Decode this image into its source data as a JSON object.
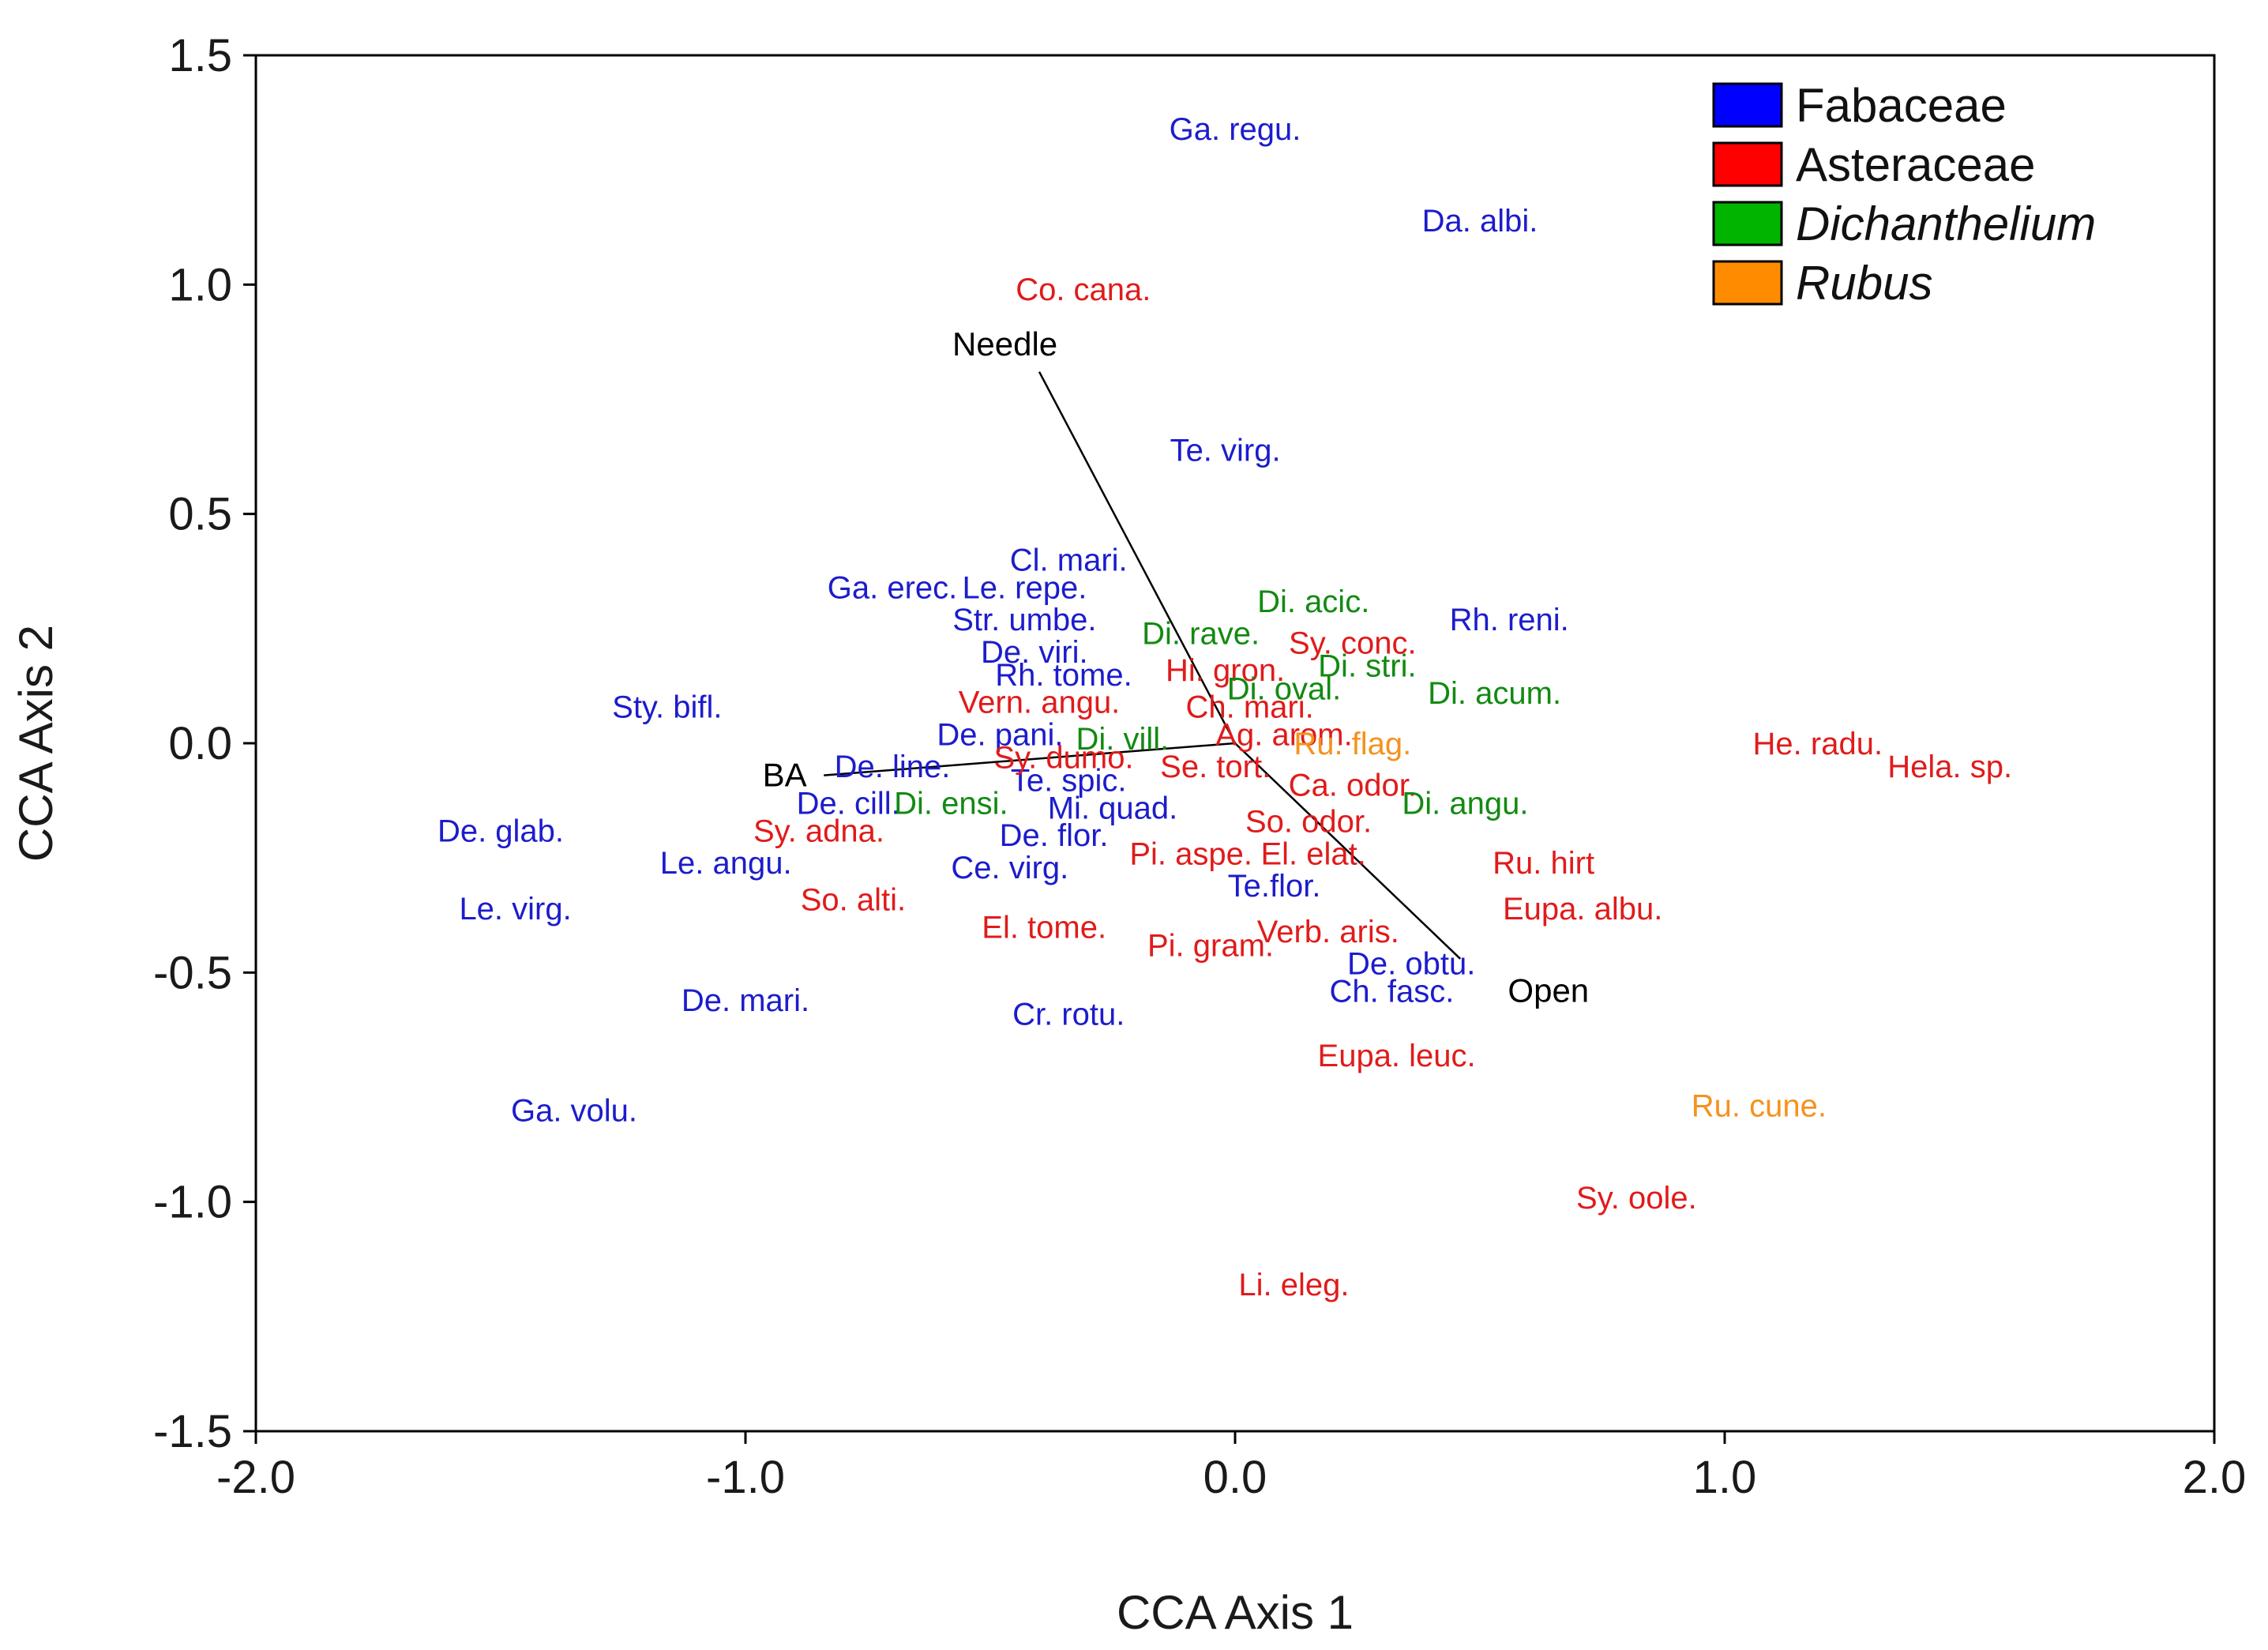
{
  "chart_data": {
    "type": "scatter",
    "title": "",
    "xlabel": "CCA Axis 1",
    "ylabel": "CCA Axis 2",
    "xlim": [
      -2.0,
      2.0
    ],
    "ylim": [
      -1.5,
      1.5
    ],
    "x_ticks": [
      -2.0,
      -1.0,
      0.0,
      1.0,
      2.0
    ],
    "x_tick_labels": [
      "-2.0",
      "-1.0",
      "0.0",
      "1.0",
      "2.0"
    ],
    "y_ticks": [
      -1.5,
      -1.0,
      -0.5,
      0.0,
      0.5,
      1.0,
      1.5
    ],
    "y_tick_labels": [
      "-1.5",
      "-1.0",
      "-0.5",
      "0.0",
      "0.5",
      "1.0",
      "1.5"
    ],
    "grid": false,
    "legend_position": "top-right",
    "colors": {
      "Fabaceae": "#1c1ccc",
      "Asteraceae": "#e01b1b",
      "Dichanthelium": "#128a12",
      "Rubus": "#f5921e",
      "vector": "#000000"
    },
    "legend": [
      {
        "label": "Fabaceae",
        "group": "Fabaceae",
        "swatch": "#0000ff",
        "italic": false
      },
      {
        "label": "Asteraceae",
        "group": "Asteraceae",
        "swatch": "#ff0000",
        "italic": false
      },
      {
        "label": "Dichanthelium",
        "group": "Dichanthelium",
        "swatch": "#00b400",
        "italic": true
      },
      {
        "label": "Rubus",
        "group": "Rubus",
        "swatch": "#ff8c00",
        "italic": true
      }
    ],
    "vectors": [
      {
        "name": "Needle",
        "x": -0.4,
        "y": 0.81,
        "label_x": -0.47,
        "label_y": 0.87
      },
      {
        "name": "BA",
        "x": -0.84,
        "y": -0.07,
        "label_x": -0.92,
        "label_y": -0.07
      },
      {
        "name": "Open",
        "x": 0.46,
        "y": -0.47,
        "label_x": 0.64,
        "label_y": -0.54
      }
    ],
    "points": [
      {
        "label": "Ga. regu.",
        "group": "Fabaceae",
        "x": 0.0,
        "y": 1.34
      },
      {
        "label": "Da. albi.",
        "group": "Fabaceae",
        "x": 0.5,
        "y": 1.14
      },
      {
        "label": "Te. virg.",
        "group": "Fabaceae",
        "x": -0.02,
        "y": 0.64
      },
      {
        "label": "Cl. mari.",
        "group": "Fabaceae",
        "x": -0.34,
        "y": 0.4
      },
      {
        "label": "Ga. erec.",
        "group": "Fabaceae",
        "x": -0.7,
        "y": 0.34
      },
      {
        "label": "Le. repe.",
        "group": "Fabaceae",
        "x": -0.43,
        "y": 0.34
      },
      {
        "label": "Str. umbe.",
        "group": "Fabaceae",
        "x": -0.43,
        "y": 0.27
      },
      {
        "label": "De. viri.",
        "group": "Fabaceae",
        "x": -0.41,
        "y": 0.2
      },
      {
        "label": "Rh. tome.",
        "group": "Fabaceae",
        "x": -0.35,
        "y": 0.15
      },
      {
        "label": "Sty. bifl.",
        "group": "Fabaceae",
        "x": -1.16,
        "y": 0.08
      },
      {
        "label": "De. pani.",
        "group": "Fabaceae",
        "x": -0.48,
        "y": 0.02
      },
      {
        "label": "De. line.",
        "group": "Fabaceae",
        "x": -0.7,
        "y": -0.05
      },
      {
        "label": "De. cill.",
        "group": "Fabaceae",
        "x": -0.79,
        "y": -0.13
      },
      {
        "label": "Te. spic.",
        "group": "Fabaceae",
        "x": -0.34,
        "y": -0.08
      },
      {
        "label": "Mi. quad.",
        "group": "Fabaceae",
        "x": -0.25,
        "y": -0.14
      },
      {
        "label": "De. flor.",
        "group": "Fabaceae",
        "x": -0.37,
        "y": -0.2
      },
      {
        "label": "De. glab.",
        "group": "Fabaceae",
        "x": -1.5,
        "y": -0.19
      },
      {
        "label": "Le. angu.",
        "group": "Fabaceae",
        "x": -1.04,
        "y": -0.26
      },
      {
        "label": "Ce. virg.",
        "group": "Fabaceae",
        "x": -0.46,
        "y": -0.27
      },
      {
        "label": "Le. virg.",
        "group": "Fabaceae",
        "x": -1.47,
        "y": -0.36
      },
      {
        "label": "Te.flor.",
        "group": "Fabaceae",
        "x": 0.08,
        "y": -0.31
      },
      {
        "label": "De. obtu.",
        "group": "Fabaceae",
        "x": 0.36,
        "y": -0.48
      },
      {
        "label": "Ch. fasc.",
        "group": "Fabaceae",
        "x": 0.32,
        "y": -0.54
      },
      {
        "label": "De. mari.",
        "group": "Fabaceae",
        "x": -1.0,
        "y": -0.56
      },
      {
        "label": "Cr. rotu.",
        "group": "Fabaceae",
        "x": -0.34,
        "y": -0.59
      },
      {
        "label": "Ga. volu.",
        "group": "Fabaceae",
        "x": -1.35,
        "y": -0.8
      },
      {
        "label": "Rh. reni.",
        "group": "Fabaceae",
        "x": 0.56,
        "y": 0.27
      },
      {
        "label": "Co. cana.",
        "group": "Asteraceae",
        "x": -0.31,
        "y": 0.99
      },
      {
        "label": "Sy. conc.",
        "group": "Asteraceae",
        "x": 0.24,
        "y": 0.22
      },
      {
        "label": "Hi. gron.",
        "group": "Asteraceae",
        "x": -0.02,
        "y": 0.16
      },
      {
        "label": "Vern. angu.",
        "group": "Asteraceae",
        "x": -0.4,
        "y": 0.09
      },
      {
        "label": "Ch. mari.",
        "group": "Asteraceae",
        "x": 0.03,
        "y": 0.08
      },
      {
        "label": "Ag. arom.",
        "group": "Asteraceae",
        "x": 0.1,
        "y": 0.02
      },
      {
        "label": "Sy. dumo.",
        "group": "Asteraceae",
        "x": -0.35,
        "y": -0.03
      },
      {
        "label": "Se. tort.",
        "group": "Asteraceae",
        "x": -0.04,
        "y": -0.05
      },
      {
        "label": "Ca. odor.",
        "group": "Asteraceae",
        "x": 0.24,
        "y": -0.09
      },
      {
        "label": "Sy. adna.",
        "group": "Asteraceae",
        "x": -0.85,
        "y": -0.19
      },
      {
        "label": "So. odor.",
        "group": "Asteraceae",
        "x": 0.15,
        "y": -0.17
      },
      {
        "label": "Pi. aspe.",
        "group": "Asteraceae",
        "x": -0.09,
        "y": -0.24
      },
      {
        "label": "El. elat.",
        "group": "Asteraceae",
        "x": 0.16,
        "y": -0.24
      },
      {
        "label": "Ru. hirt",
        "group": "Asteraceae",
        "x": 0.63,
        "y": -0.26
      },
      {
        "label": "So. alti.",
        "group": "Asteraceae",
        "x": -0.78,
        "y": -0.34
      },
      {
        "label": "Eupa. albu.",
        "group": "Asteraceae",
        "x": 0.71,
        "y": -0.36
      },
      {
        "label": "El. tome.",
        "group": "Asteraceae",
        "x": -0.39,
        "y": -0.4
      },
      {
        "label": "Verb. aris.",
        "group": "Asteraceae",
        "x": 0.19,
        "y": -0.41
      },
      {
        "label": "Pi. gram.",
        "group": "Asteraceae",
        "x": -0.05,
        "y": -0.44
      },
      {
        "label": "He. radu.",
        "group": "Asteraceae",
        "x": 1.19,
        "y": 0.0
      },
      {
        "label": "Hela. sp.",
        "group": "Asteraceae",
        "x": 1.46,
        "y": -0.05
      },
      {
        "label": "Eupa. leuc.",
        "group": "Asteraceae",
        "x": 0.33,
        "y": -0.68
      },
      {
        "label": "Sy. oole.",
        "group": "Asteraceae",
        "x": 0.82,
        "y": -0.99
      },
      {
        "label": "Li. eleg.",
        "group": "Asteraceae",
        "x": 0.12,
        "y": -1.18
      },
      {
        "label": "Di. acic.",
        "group": "Dichanthelium",
        "x": 0.16,
        "y": 0.31
      },
      {
        "label": "Di. rave.",
        "group": "Dichanthelium",
        "x": -0.07,
        "y": 0.24
      },
      {
        "label": "Di. stri.",
        "group": "Dichanthelium",
        "x": 0.27,
        "y": 0.17
      },
      {
        "label": "Di. oval.",
        "group": "Dichanthelium",
        "x": 0.1,
        "y": 0.12
      },
      {
        "label": "Di. acum.",
        "group": "Dichanthelium",
        "x": 0.53,
        "y": 0.11
      },
      {
        "label": "Di. vill.",
        "group": "Dichanthelium",
        "x": -0.23,
        "y": 0.01
      },
      {
        "label": "Di. ensi.",
        "group": "Dichanthelium",
        "x": -0.58,
        "y": -0.13
      },
      {
        "label": "Di. angu.",
        "group": "Dichanthelium",
        "x": 0.47,
        "y": -0.13
      },
      {
        "label": "Ru. flag.",
        "group": "Rubus",
        "x": 0.24,
        "y": 0.0
      },
      {
        "label": "Ru. cune.",
        "group": "Rubus",
        "x": 1.07,
        "y": -0.79
      }
    ]
  }
}
